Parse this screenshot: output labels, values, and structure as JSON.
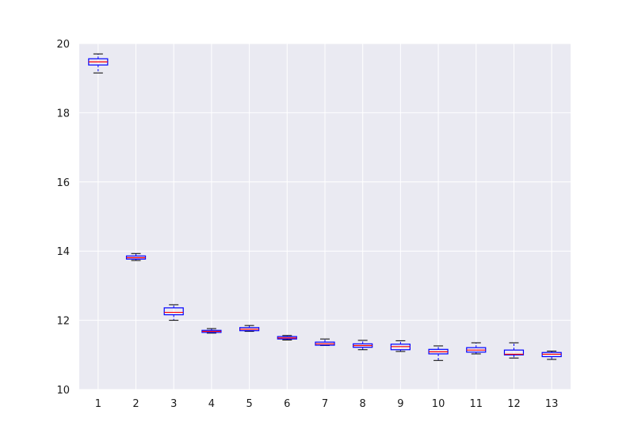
{
  "chart_data": {
    "type": "box",
    "title": "",
    "xlabel": "",
    "ylabel": "",
    "ylim": [
      10,
      20
    ],
    "yticks": [
      10,
      12,
      14,
      16,
      18,
      20
    ],
    "categories": [
      "1",
      "2",
      "3",
      "4",
      "5",
      "6",
      "7",
      "8",
      "9",
      "10",
      "11",
      "12",
      "13"
    ],
    "grid": true,
    "background_color": "#EAEAF2",
    "grid_color": "#FFFFFF",
    "box_color": "#0000FF",
    "median_color": "#FF0000",
    "whisker_color": "#000000",
    "boxes": [
      {
        "label": "1",
        "whislo": 19.15,
        "q1": 19.38,
        "med": 19.47,
        "q3": 19.56,
        "whishi": 19.7
      },
      {
        "label": "2",
        "whislo": 13.73,
        "q1": 13.77,
        "med": 13.81,
        "q3": 13.86,
        "whishi": 13.93
      },
      {
        "label": "3",
        "whislo": 12.0,
        "q1": 12.16,
        "med": 12.23,
        "q3": 12.36,
        "whishi": 12.45
      },
      {
        "label": "4",
        "whislo": 11.63,
        "q1": 11.65,
        "med": 11.68,
        "q3": 11.71,
        "whishi": 11.76
      },
      {
        "label": "5",
        "whislo": 11.68,
        "q1": 11.7,
        "med": 11.74,
        "q3": 11.79,
        "whishi": 11.85
      },
      {
        "label": "6",
        "whislo": 11.43,
        "q1": 11.46,
        "med": 11.49,
        "q3": 11.53,
        "whishi": 11.56
      },
      {
        "label": "7",
        "whislo": 11.27,
        "q1": 11.28,
        "med": 11.32,
        "q3": 11.37,
        "whishi": 11.46
      },
      {
        "label": "8",
        "whislo": 11.15,
        "q1": 11.22,
        "med": 11.27,
        "q3": 11.32,
        "whishi": 11.42
      },
      {
        "label": "9",
        "whislo": 11.1,
        "q1": 11.15,
        "med": 11.24,
        "q3": 11.31,
        "whishi": 11.41
      },
      {
        "label": "10",
        "whislo": 10.84,
        "q1": 11.03,
        "med": 11.09,
        "q3": 11.16,
        "whishi": 11.26
      },
      {
        "label": "11",
        "whislo": 11.03,
        "q1": 11.08,
        "med": 11.14,
        "q3": 11.21,
        "whishi": 11.35
      },
      {
        "label": "12",
        "whislo": 10.91,
        "q1": 11.0,
        "med": 11.02,
        "q3": 11.14,
        "whishi": 11.35
      },
      {
        "label": "13",
        "whislo": 10.87,
        "q1": 10.95,
        "med": 11.02,
        "q3": 11.07,
        "whishi": 11.11
      }
    ]
  }
}
